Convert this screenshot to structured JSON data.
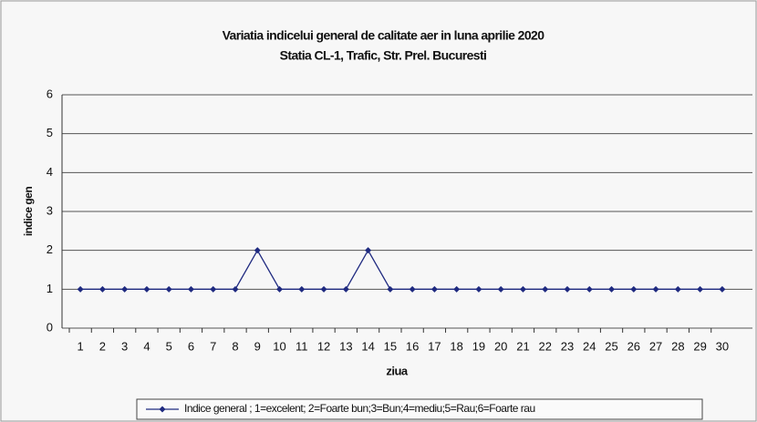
{
  "chart_data": {
    "type": "line",
    "title": "Variatia indicelui general de calitate aer in luna aprilie 2020",
    "subtitle": "Statia CL-1, Trafic, Str. Prel. Bucuresti",
    "x_label": "ziua",
    "y_label": "indice gen",
    "categories": [
      1,
      2,
      3,
      4,
      5,
      6,
      7,
      8,
      9,
      10,
      11,
      12,
      13,
      14,
      15,
      16,
      17,
      18,
      19,
      20,
      21,
      22,
      23,
      24,
      25,
      26,
      27,
      28,
      29,
      30
    ],
    "series": [
      {
        "name": "Indice general ; 1=excelent; 2=Foarte bun;3=Bun;4=mediu;5=Rau;6=Foarte rau",
        "color": "#1f2a80",
        "values": [
          1,
          1,
          1,
          1,
          1,
          1,
          1,
          1,
          2,
          1,
          1,
          1,
          1,
          2,
          1,
          1,
          1,
          1,
          1,
          1,
          1,
          1,
          1,
          1,
          1,
          1,
          1,
          1,
          1,
          1
        ]
      }
    ],
    "ylim": [
      0,
      6
    ],
    "yticks": [
      0,
      1,
      2,
      3,
      4,
      5,
      6
    ],
    "grid": true,
    "legend": "bottom"
  }
}
